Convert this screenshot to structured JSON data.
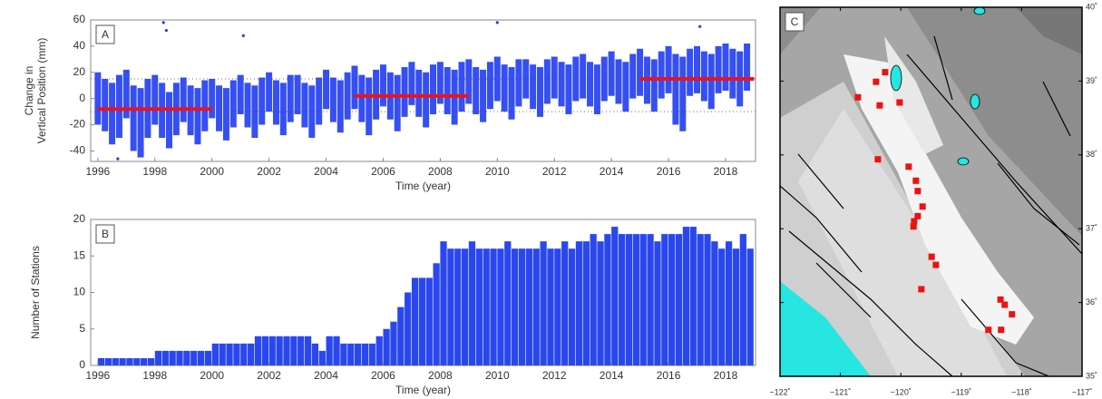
{
  "chart_data": [
    {
      "type": "range",
      "panel_label": "A",
      "ylabel": [
        "Change in",
        "Vertical Position (mm)"
      ],
      "xlabel": "Time (year)",
      "color": "#1f3cf2",
      "segment_color": "#e8141b",
      "reference_color": "#8a6a5a",
      "xlim": [
        1995.75,
        2019.05
      ],
      "ylim": [
        -48,
        60
      ],
      "xticks": [
        1996,
        1998,
        2000,
        2002,
        2004,
        2006,
        2008,
        2010,
        2012,
        2014,
        2016,
        2018
      ],
      "yticks": [
        -40,
        -20,
        0,
        20,
        40,
        60
      ],
      "x": [
        1996,
        1996.25,
        1996.5,
        1996.75,
        1997,
        1997.25,
        1997.5,
        1997.75,
        1998,
        1998.25,
        1998.5,
        1998.75,
        1999,
        1999.25,
        1999.5,
        1999.75,
        2000,
        2000.25,
        2000.5,
        2000.75,
        2001,
        2001.25,
        2001.5,
        2001.75,
        2002,
        2002.25,
        2002.5,
        2002.75,
        2003,
        2003.25,
        2003.5,
        2003.75,
        2004,
        2004.25,
        2004.5,
        2004.75,
        2005,
        2005.25,
        2005.5,
        2005.75,
        2006,
        2006.25,
        2006.5,
        2006.75,
        2007,
        2007.25,
        2007.5,
        2007.75,
        2008,
        2008.25,
        2008.5,
        2008.75,
        2009,
        2009.25,
        2009.5,
        2009.75,
        2010,
        2010.25,
        2010.5,
        2010.75,
        2011,
        2011.25,
        2011.5,
        2011.75,
        2012,
        2012.25,
        2012.5,
        2012.75,
        2013,
        2013.25,
        2013.5,
        2013.75,
        2014,
        2014.25,
        2014.5,
        2014.75,
        2015,
        2015.25,
        2015.5,
        2015.75,
        2016,
        2016.25,
        2016.5,
        2016.75,
        2017,
        2017.25,
        2017.5,
        2017.75,
        2018,
        2018.25,
        2018.5,
        2018.75
      ],
      "low": [
        -20,
        -25,
        -35,
        -30,
        -15,
        -40,
        -45,
        -30,
        -20,
        -30,
        -38,
        -28,
        -18,
        -28,
        -35,
        -25,
        -15,
        -25,
        -32,
        -22,
        -12,
        -22,
        -30,
        -20,
        -10,
        -20,
        -28,
        -18,
        -12,
        -22,
        -30,
        -20,
        -8,
        -18,
        -26,
        -16,
        -8,
        -18,
        -28,
        -16,
        -6,
        -16,
        -25,
        -14,
        -5,
        -14,
        -22,
        -12,
        -4,
        -12,
        -20,
        -10,
        -4,
        -12,
        -18,
        -8,
        -2,
        -10,
        -16,
        -6,
        0,
        -8,
        -14,
        -4,
        0,
        -6,
        -12,
        -2,
        0,
        -6,
        -12,
        -2,
        2,
        -4,
        -10,
        0,
        2,
        -4,
        -10,
        0,
        4,
        -20,
        -25,
        2,
        4,
        -2,
        -8,
        4,
        6,
        0,
        -6,
        6
      ],
      "high": [
        20,
        15,
        12,
        18,
        22,
        10,
        8,
        15,
        18,
        12,
        5,
        12,
        16,
        10,
        8,
        14,
        15,
        10,
        8,
        14,
        18,
        12,
        10,
        16,
        20,
        14,
        12,
        18,
        18,
        12,
        10,
        16,
        22,
        16,
        14,
        20,
        25,
        18,
        16,
        22,
        26,
        20,
        18,
        24,
        28,
        22,
        20,
        26,
        28,
        24,
        22,
        28,
        30,
        24,
        22,
        28,
        32,
        26,
        24,
        30,
        30,
        26,
        24,
        30,
        32,
        28,
        26,
        32,
        34,
        28,
        26,
        32,
        36,
        30,
        28,
        34,
        38,
        32,
        30,
        36,
        40,
        34,
        32,
        38,
        40,
        36,
        34,
        40,
        42,
        38,
        36,
        42
      ],
      "outliers": {
        "x": [
          1998.3,
          1998.4,
          2001.1,
          2010,
          2017.1,
          1996.7
        ],
        "y": [
          58,
          52,
          48,
          58,
          55,
          -46
        ]
      },
      "segments": [
        {
          "x": [
            1996,
            2000
          ],
          "y": -8
        },
        {
          "x": [
            2005,
            2009
          ],
          "y": 2
        },
        {
          "x": [
            2015,
            2019
          ],
          "y": 15
        }
      ],
      "reference_lines": [
        15,
        -10
      ]
    },
    {
      "type": "bar",
      "panel_label": "B",
      "ylabel": [
        "Number of Stations"
      ],
      "xlabel": "Time (year)",
      "color": "#2a47ee",
      "xlim": [
        1995.75,
        2019.05
      ],
      "ylim": [
        0,
        20
      ],
      "xticks": [
        1996,
        1998,
        2000,
        2002,
        2004,
        2006,
        2008,
        2010,
        2012,
        2014,
        2016,
        2018
      ],
      "yticks": [
        0,
        5,
        10,
        15,
        20
      ],
      "x": [
        1996,
        1996.25,
        1996.5,
        1996.75,
        1997,
        1997.25,
        1997.5,
        1997.75,
        1998,
        1998.25,
        1998.5,
        1998.75,
        1999,
        1999.25,
        1999.5,
        1999.75,
        2000,
        2000.25,
        2000.5,
        2000.75,
        2001,
        2001.25,
        2001.5,
        2001.75,
        2002,
        2002.25,
        2002.5,
        2002.75,
        2003,
        2003.25,
        2003.5,
        2003.75,
        2004,
        2004.25,
        2004.5,
        2004.75,
        2005,
        2005.25,
        2005.5,
        2005.75,
        2006,
        2006.25,
        2006.5,
        2006.75,
        2007,
        2007.25,
        2007.5,
        2007.75,
        2008,
        2008.25,
        2008.5,
        2008.75,
        2009,
        2009.25,
        2009.5,
        2009.75,
        2010,
        2010.25,
        2010.5,
        2010.75,
        2011,
        2011.25,
        2011.5,
        2011.75,
        2012,
        2012.25,
        2012.5,
        2012.75,
        2013,
        2013.25,
        2013.5,
        2013.75,
        2014,
        2014.25,
        2014.5,
        2014.75,
        2015,
        2015.25,
        2015.5,
        2015.75,
        2016,
        2016.25,
        2016.5,
        2016.75,
        2017,
        2017.25,
        2017.5,
        2017.75,
        2018,
        2018.25,
        2018.5,
        2018.75
      ],
      "values": [
        1,
        1,
        1,
        1,
        1,
        1,
        1,
        1,
        2,
        2,
        2,
        2,
        2,
        2,
        2,
        2,
        3,
        3,
        3,
        3,
        3,
        3,
        4,
        4,
        4,
        4,
        4,
        4,
        4,
        4,
        3,
        2,
        4,
        4,
        3,
        3,
        3,
        3,
        3,
        4,
        5,
        6,
        8,
        10,
        12,
        12,
        12,
        14,
        17,
        16,
        16,
        16,
        17,
        16,
        16,
        16,
        16,
        17,
        16,
        16,
        16,
        16,
        17,
        16,
        16,
        17,
        16,
        17,
        17,
        18,
        17,
        18,
        19,
        18,
        18,
        18,
        18,
        18,
        17,
        18,
        18,
        18,
        19,
        19,
        18,
        18,
        17,
        16,
        17,
        16,
        18,
        16
      ]
    },
    {
      "type": "scatter",
      "panel_label": "C",
      "color": "#ee1111",
      "xlim": [
        -122,
        -117
      ],
      "ylim": [
        35,
        40
      ],
      "xticks": [
        {
          "value": -122,
          "label": "−122˚"
        },
        {
          "value": -121,
          "label": "−121˚"
        },
        {
          "value": -120,
          "label": "−120˚"
        },
        {
          "value": -119,
          "label": "−119˚"
        },
        {
          "value": -118,
          "label": "−118˚"
        },
        {
          "value": -117,
          "label": "−117˚"
        }
      ],
      "yticks": [
        {
          "value": 35,
          "label": "35˚"
        },
        {
          "value": 36,
          "label": "36˚"
        },
        {
          "value": 37,
          "label": "37˚"
        },
        {
          "value": 38,
          "label": "38˚"
        },
        {
          "value": 39,
          "label": "39˚"
        },
        {
          "value": 40,
          "label": "40˚"
        }
      ],
      "x": [
        -120.71,
        -120.41,
        -120.26,
        -120.35,
        -120.02,
        -120.38,
        -119.87,
        -119.75,
        -119.72,
        -119.64,
        -119.72,
        -119.78,
        -119.79,
        -119.49,
        -119.42,
        -119.66,
        -118.35,
        -118.28,
        -118.16,
        -118.55,
        -118.34
      ],
      "y": [
        38.78,
        38.99,
        39.12,
        38.67,
        38.71,
        37.94,
        37.84,
        37.65,
        37.51,
        37.3,
        37.17,
        37.1,
        37.03,
        36.62,
        36.51,
        36.18,
        36.04,
        35.97,
        35.84,
        35.63,
        35.63
      ]
    }
  ]
}
